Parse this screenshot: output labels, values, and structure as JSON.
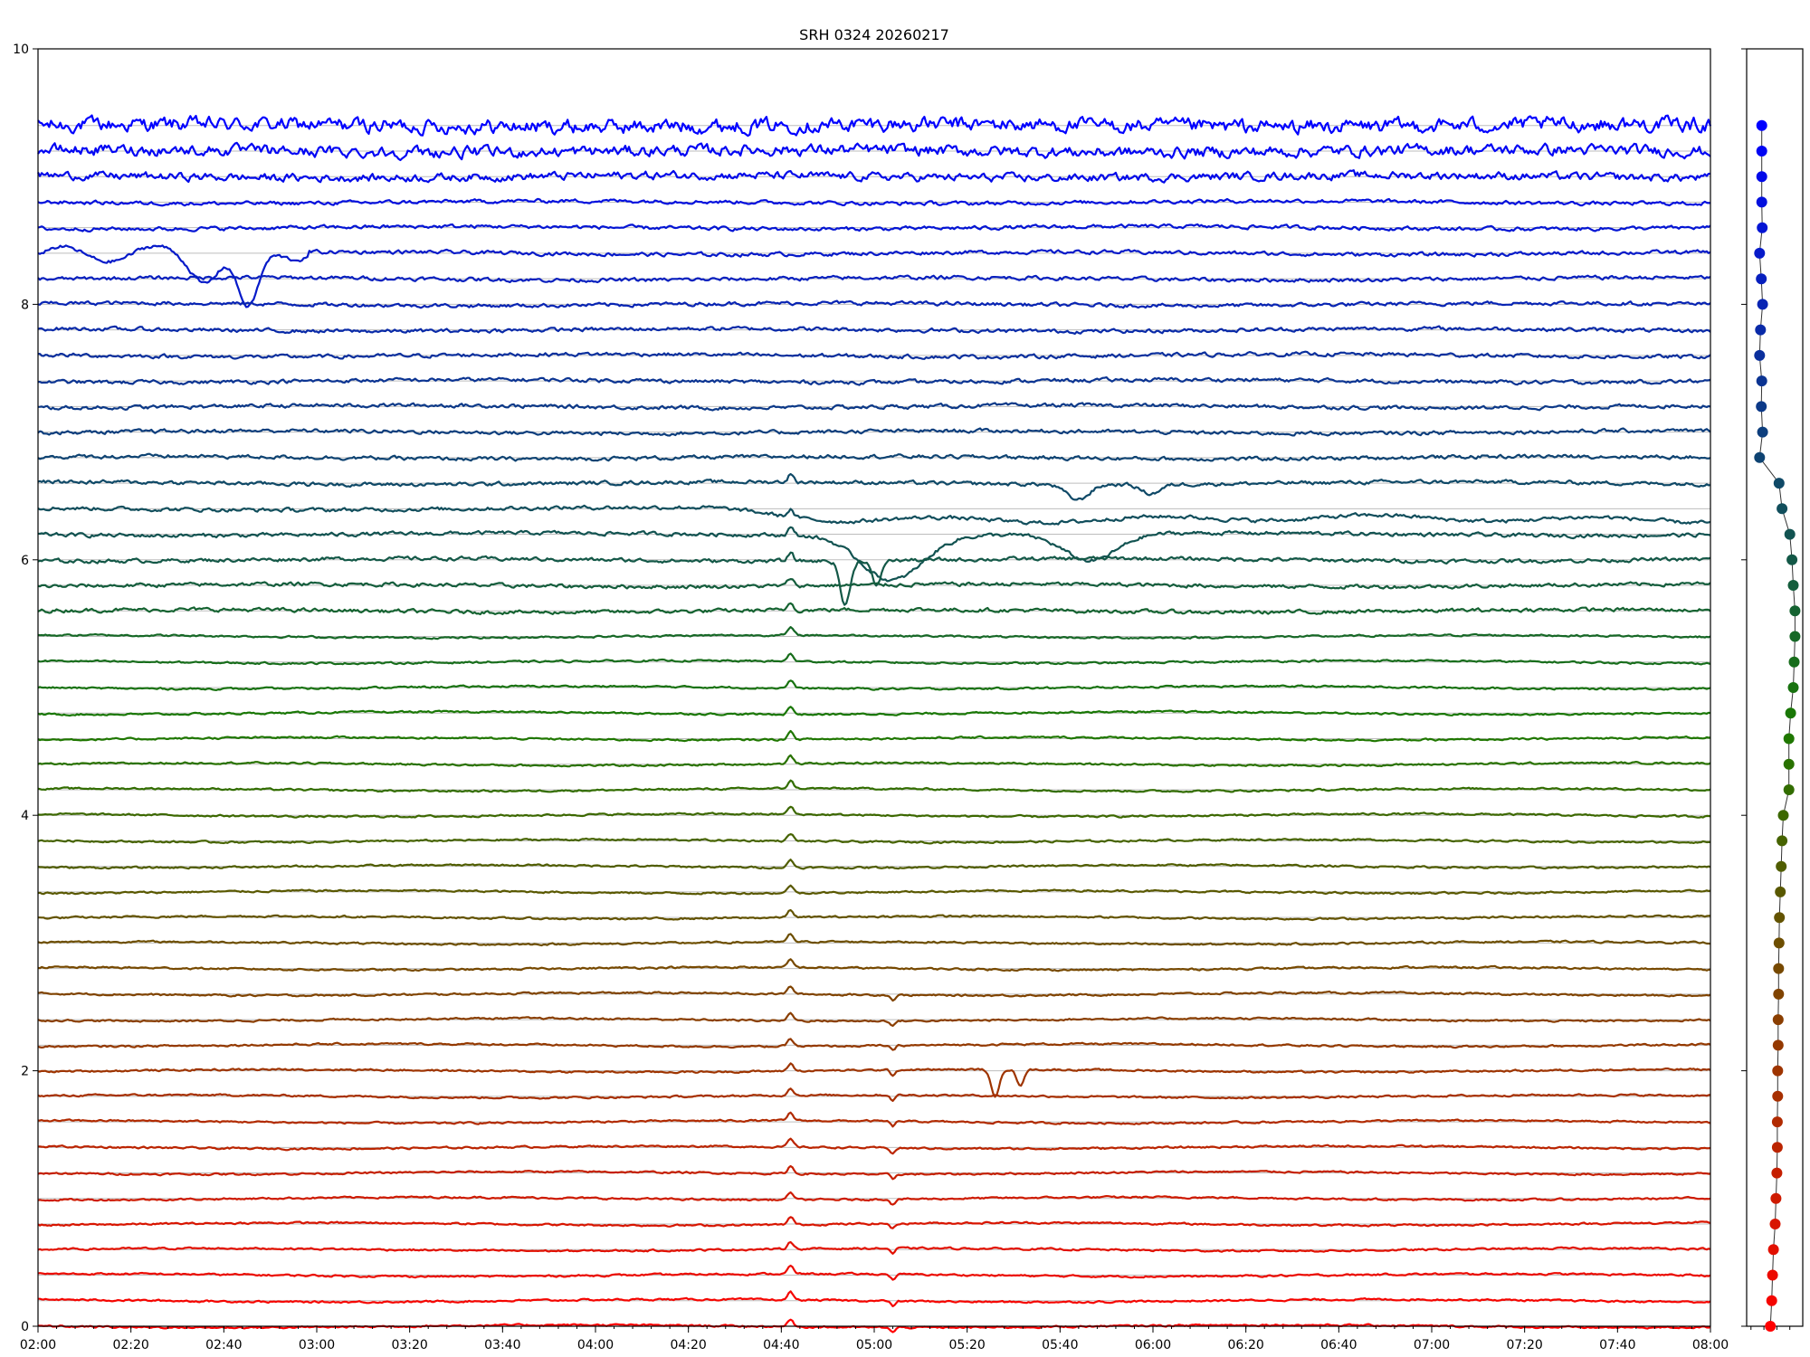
{
  "chart_data": {
    "type": "line",
    "title": "SRH 0324 20260217",
    "xlabel": "",
    "ylabel": "",
    "xlim": [
      "02:00",
      "08:00"
    ],
    "ylim": [
      0,
      10
    ],
    "x_ticks": [
      "02:00",
      "02:20",
      "02:40",
      "03:00",
      "03:20",
      "03:40",
      "04:00",
      "04:20",
      "04:40",
      "05:00",
      "05:20",
      "05:40",
      "06:00",
      "06:20",
      "06:40",
      "07:00",
      "07:20",
      "07:40",
      "08:00"
    ],
    "y_ticks": [
      "0",
      "2",
      "4",
      "6",
      "8",
      "10"
    ],
    "grid": "horizontal lines at trace baselines",
    "color_gradient": {
      "top": "#0000ff",
      "middle": "#1a7a00",
      "bottom": "#ff0000"
    },
    "offsets": [
      9.4,
      9.2,
      9.0,
      8.8,
      8.6,
      8.4,
      8.2,
      8.0,
      7.8,
      7.6,
      7.4,
      7.2,
      7.0,
      6.8,
      6.6,
      6.4,
      6.2,
      6.0,
      5.8,
      5.6,
      5.4,
      5.2,
      5.0,
      4.8,
      4.6,
      4.4,
      4.2,
      4.0,
      3.8,
      3.6,
      3.4,
      3.2,
      3.0,
      2.8,
      2.6,
      2.4,
      2.2,
      2.0,
      1.8,
      1.6,
      1.4,
      1.2,
      1.0,
      0.8,
      0.6,
      0.4,
      0.2,
      0.0
    ],
    "side_panel_points": [
      [
        -0.05,
        9.4
      ],
      [
        -0.05,
        9.2
      ],
      [
        -0.05,
        9.0
      ],
      [
        -0.05,
        8.8
      ],
      [
        -0.04,
        8.6
      ],
      [
        -0.1,
        8.4
      ],
      [
        -0.06,
        8.2
      ],
      [
        -0.03,
        8.0
      ],
      [
        -0.08,
        7.8
      ],
      [
        -0.1,
        7.6
      ],
      [
        -0.05,
        7.4
      ],
      [
        -0.06,
        7.2
      ],
      [
        -0.03,
        7.0
      ],
      [
        -0.1,
        6.8
      ],
      [
        0.35,
        6.6
      ],
      [
        0.42,
        6.4
      ],
      [
        0.6,
        6.2
      ],
      [
        0.65,
        6.0
      ],
      [
        0.68,
        5.8
      ],
      [
        0.72,
        5.6
      ],
      [
        0.72,
        5.4
      ],
      [
        0.7,
        5.2
      ],
      [
        0.68,
        5.0
      ],
      [
        0.62,
        4.8
      ],
      [
        0.58,
        4.6
      ],
      [
        0.58,
        4.4
      ],
      [
        0.58,
        4.2
      ],
      [
        0.45,
        4.0
      ],
      [
        0.42,
        3.8
      ],
      [
        0.4,
        3.6
      ],
      [
        0.38,
        3.4
      ],
      [
        0.36,
        3.2
      ],
      [
        0.35,
        3.0
      ],
      [
        0.34,
        2.8
      ],
      [
        0.34,
        2.6
      ],
      [
        0.33,
        2.4
      ],
      [
        0.33,
        2.2
      ],
      [
        0.32,
        2.0
      ],
      [
        0.32,
        1.8
      ],
      [
        0.31,
        1.6
      ],
      [
        0.31,
        1.4
      ],
      [
        0.3,
        1.2
      ],
      [
        0.28,
        1.0
      ],
      [
        0.26,
        0.8
      ],
      [
        0.22,
        0.6
      ],
      [
        0.2,
        0.4
      ],
      [
        0.18,
        0.2
      ],
      [
        0.15,
        0.0
      ]
    ],
    "events": [
      {
        "trace_index": 5,
        "start": "02:00",
        "end": "02:58",
        "kind": "wavy disturbance",
        "min_dy": -0.48
      },
      {
        "trace_index": 14,
        "start": "05:35",
        "end": "06:10",
        "kind": "dip",
        "min_dy": -0.12
      },
      {
        "trace_index": 15,
        "start": "04:15",
        "end": "08:00",
        "kind": "level shift",
        "min_dy": -0.08
      },
      {
        "trace_index": 16,
        "start": "04:40",
        "end": "06:15",
        "kind": "deep dips",
        "min_dy": -0.35
      },
      {
        "trace_index": 17,
        "start": "04:50",
        "end": "05:05",
        "kind": "deep dip",
        "min_dy": -0.35
      },
      {
        "trace_index": 37,
        "start": "05:23",
        "end": "05:35",
        "kind": "dip",
        "min_dy": -0.22
      },
      {
        "all_traces": true,
        "time": "04:42",
        "kind": "spike",
        "dy": 0.06
      },
      {
        "lower_traces": true,
        "time": "05:04",
        "kind": "spike",
        "dy": -0.04
      }
    ]
  }
}
